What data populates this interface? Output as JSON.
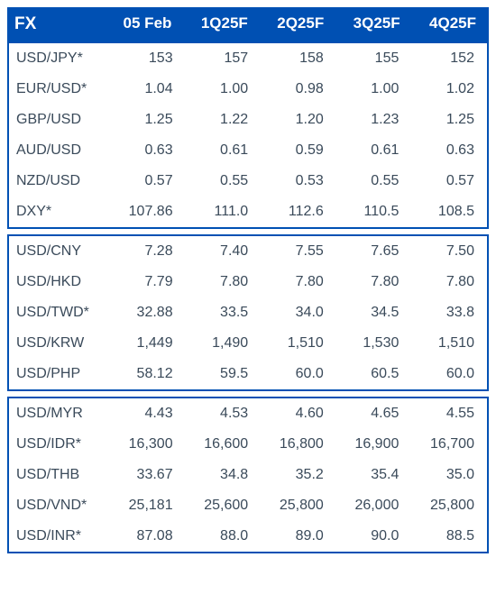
{
  "table": {
    "header_bg": "#0050b3",
    "header_text_color": "#ffffff",
    "border_color": "#0050b3",
    "text_color": "#3a4a5a",
    "font_size_header": 17,
    "font_size_data": 16,
    "columns": [
      "FX",
      "05 Feb",
      "1Q25F",
      "2Q25F",
      "3Q25F",
      "4Q25F"
    ],
    "sections": [
      {
        "rows": [
          {
            "label": "USD/JPY*",
            "values": [
              "153",
              "157",
              "158",
              "155",
              "152"
            ]
          },
          {
            "label": "EUR/USD*",
            "values": [
              "1.04",
              "1.00",
              "0.98",
              "1.00",
              "1.02"
            ]
          },
          {
            "label": "GBP/USD",
            "values": [
              "1.25",
              "1.22",
              "1.20",
              "1.23",
              "1.25"
            ]
          },
          {
            "label": "AUD/USD",
            "values": [
              "0.63",
              "0.61",
              "0.59",
              "0.61",
              "0.63"
            ]
          },
          {
            "label": "NZD/USD",
            "values": [
              "0.57",
              "0.55",
              "0.53",
              "0.55",
              "0.57"
            ]
          },
          {
            "label": "DXY*",
            "values": [
              "107.86",
              "111.0",
              "112.6",
              "110.5",
              "108.5"
            ]
          }
        ]
      },
      {
        "rows": [
          {
            "label": "USD/CNY",
            "values": [
              "7.28",
              "7.40",
              "7.55",
              "7.65",
              "7.50"
            ]
          },
          {
            "label": "USD/HKD",
            "values": [
              "7.79",
              "7.80",
              "7.80",
              "7.80",
              "7.80"
            ]
          },
          {
            "label": "USD/TWD*",
            "values": [
              "32.88",
              "33.5",
              "34.0",
              "34.5",
              "33.8"
            ]
          },
          {
            "label": "USD/KRW",
            "values": [
              "1,449",
              "1,490",
              "1,510",
              "1,530",
              "1,510"
            ]
          },
          {
            "label": "USD/PHP",
            "values": [
              "58.12",
              "59.5",
              "60.0",
              "60.5",
              "60.0"
            ]
          }
        ]
      },
      {
        "rows": [
          {
            "label": "USD/MYR",
            "values": [
              "4.43",
              "4.53",
              "4.60",
              "4.65",
              "4.55"
            ]
          },
          {
            "label": "USD/IDR*",
            "values": [
              "16,300",
              "16,600",
              "16,800",
              "16,900",
              "16,700"
            ]
          },
          {
            "label": "USD/THB",
            "values": [
              "33.67",
              "34.8",
              "35.2",
              "35.4",
              "35.0"
            ]
          },
          {
            "label": "USD/VND*",
            "values": [
              "25,181",
              "25,600",
              "25,800",
              "26,000",
              "25,800"
            ]
          },
          {
            "label": "USD/INR*",
            "values": [
              "87.08",
              "88.0",
              "89.0",
              "90.0",
              "88.5"
            ]
          }
        ]
      }
    ]
  }
}
